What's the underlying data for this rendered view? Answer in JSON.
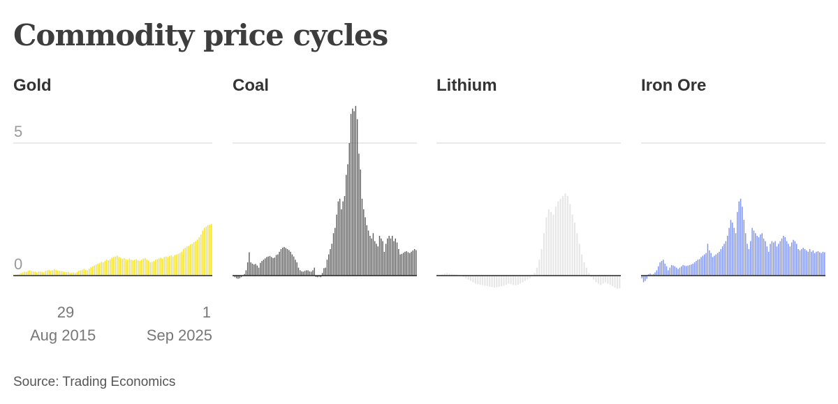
{
  "title": "Commodity price cycles",
  "source": "Source: Trading Economics",
  "chart_data": [
    {
      "type": "bar",
      "name": "Gold",
      "color": "#f5e33d",
      "ylim": [
        -1,
        10
      ],
      "y_ticks": [
        "5",
        "0"
      ],
      "y_tick_values": [
        5,
        0
      ],
      "x_tick_labels": [
        {
          "line1": "29",
          "line2": "Aug 2015"
        },
        {
          "line1": "1",
          "line2": "Sep 2025"
        }
      ],
      "values": [
        0.02,
        0.03,
        0.05,
        0.06,
        0.1,
        0.12,
        0.15,
        0.14,
        0.18,
        0.2,
        0.17,
        0.16,
        0.15,
        0.12,
        0.15,
        0.16,
        0.14,
        0.12,
        0.18,
        0.2,
        0.22,
        0.18,
        0.2,
        0.24,
        0.22,
        0.2,
        0.18,
        0.17,
        0.16,
        0.14,
        0.13,
        0.15,
        0.1,
        0.11,
        0.12,
        0.1,
        0.14,
        0.18,
        0.2,
        0.22,
        0.25,
        0.22,
        0.2,
        0.26,
        0.32,
        0.35,
        0.38,
        0.42,
        0.45,
        0.48,
        0.52,
        0.5,
        0.55,
        0.6,
        0.58,
        0.62,
        0.68,
        0.7,
        0.72,
        0.75,
        0.7,
        0.68,
        0.64,
        0.66,
        0.62,
        0.6,
        0.64,
        0.6,
        0.58,
        0.6,
        0.62,
        0.58,
        0.56,
        0.6,
        0.64,
        0.66,
        0.6,
        0.58,
        0.5,
        0.52,
        0.55,
        0.6,
        0.62,
        0.65,
        0.68,
        0.64,
        0.7,
        0.72,
        0.7,
        0.74,
        0.76,
        0.72,
        0.78,
        0.8,
        0.82,
        0.86,
        0.9,
        1.0,
        1.05,
        1.1,
        1.12,
        1.18,
        1.2,
        1.26,
        1.3,
        1.36,
        1.45,
        1.55,
        1.7,
        1.8,
        1.85,
        1.9,
        1.92,
        1.95
      ]
    },
    {
      "type": "bar",
      "name": "Coal",
      "color": "#5c5c5c",
      "ylim": [
        -1,
        10
      ],
      "values": [
        -0.02,
        -0.06,
        -0.1,
        -0.12,
        -0.1,
        -0.06,
        -0.02,
        0.06,
        0.2,
        0.5,
        0.88,
        0.5,
        0.45,
        0.42,
        0.44,
        0.38,
        0.3,
        0.48,
        0.55,
        0.6,
        0.65,
        0.7,
        0.72,
        0.74,
        0.7,
        0.66,
        0.68,
        0.78,
        0.8,
        0.9,
        1.0,
        1.05,
        1.08,
        1.04,
        1.0,
        0.96,
        0.9,
        0.8,
        0.72,
        0.6,
        0.5,
        0.3,
        0.2,
        0.16,
        0.15,
        0.18,
        0.2,
        0.2,
        0.16,
        0.15,
        0.2,
        0.3,
        -0.05,
        -0.06,
        -0.04,
        -0.06,
        0.1,
        0.28,
        0.3,
        0.6,
        0.8,
        1.0,
        1.2,
        1.6,
        1.8,
        2.3,
        2.8,
        2.9,
        2.5,
        2.8,
        3.0,
        3.8,
        4.2,
        5.0,
        6.1,
        6.3,
        6.2,
        6.4,
        5.9,
        4.6,
        4.0,
        2.9,
        2.5,
        2.2,
        1.9,
        1.7,
        1.5,
        1.4,
        1.6,
        1.3,
        1.2,
        1.1,
        1.5,
        1.4,
        1.3,
        0.9,
        1.2,
        1.4,
        1.5,
        1.4,
        1.5,
        1.3,
        1.4,
        1.25,
        1.0,
        0.8,
        0.82,
        0.86,
        0.9,
        0.92,
        0.88,
        0.85,
        0.9,
        0.95,
        1.0,
        0.96
      ]
    },
    {
      "type": "bar",
      "name": "Lithium",
      "color": "#e6e6e6",
      "ylim": [
        -1,
        10
      ],
      "values": [
        0.02,
        0.03,
        0.05,
        0.08,
        0.1,
        0.08,
        0.06,
        0.05,
        0.04,
        0.02,
        0.0,
        -0.05,
        -0.1,
        -0.15,
        -0.2,
        -0.25,
        -0.3,
        -0.32,
        -0.35,
        -0.36,
        -0.38,
        -0.4,
        -0.42,
        -0.43,
        -0.45,
        -0.44,
        -0.42,
        -0.4,
        -0.38,
        -0.35,
        -0.3,
        -0.32,
        -0.35,
        -0.36,
        -0.34,
        -0.3,
        -0.25,
        -0.2,
        -0.15,
        -0.1,
        0.0,
        0.1,
        0.3,
        0.6,
        1.0,
        1.6,
        2.2,
        2.5,
        2.4,
        2.3,
        2.6,
        2.8,
        2.9,
        3.0,
        3.1,
        3.0,
        2.7,
        2.3,
        2.0,
        1.6,
        1.2,
        0.8,
        0.5,
        0.3,
        0.1,
        -0.05,
        -0.15,
        -0.25,
        -0.3,
        -0.35,
        -0.3,
        -0.25,
        -0.3,
        -0.35,
        -0.4,
        -0.45,
        -0.5,
        -0.48
      ]
    },
    {
      "type": "bar",
      "name": "Iron Ore",
      "color": "#7e93ef",
      "ylim": [
        -1,
        10
      ],
      "values": [
        -0.1,
        -0.25,
        -0.2,
        -0.12,
        0.05,
        0.08,
        0.04,
        0.06,
        0.12,
        0.2,
        0.35,
        0.5,
        0.55,
        0.6,
        0.45,
        0.35,
        0.2,
        0.3,
        0.4,
        0.38,
        0.35,
        0.3,
        0.25,
        0.3,
        0.35,
        0.4,
        0.38,
        0.36,
        0.38,
        0.4,
        0.42,
        0.45,
        0.5,
        0.55,
        0.6,
        0.62,
        0.7,
        0.75,
        0.8,
        0.85,
        1.2,
        0.95,
        0.85,
        0.7,
        0.75,
        0.8,
        0.85,
        0.9,
        1.0,
        1.1,
        1.2,
        1.3,
        1.5,
        1.8,
        2.1,
        2.0,
        1.8,
        1.6,
        2.4,
        2.8,
        2.9,
        2.6,
        2.1,
        1.6,
        1.2,
        1.0,
        1.3,
        1.8,
        1.7,
        1.6,
        1.5,
        1.45,
        1.55,
        1.6,
        1.4,
        1.3,
        1.1,
        0.9,
        1.2,
        1.3,
        1.25,
        1.3,
        1.1,
        1.2,
        1.3,
        1.4,
        1.5,
        1.45,
        1.3,
        1.2,
        1.1,
        1.25,
        1.35,
        1.3,
        1.2,
        1.0,
        0.95,
        1.0,
        1.05,
        1.0,
        0.95,
        0.9,
        1.0,
        0.9,
        0.95,
        0.85,
        0.9,
        0.92,
        0.88,
        0.85,
        0.9,
        0.88
      ]
    }
  ]
}
